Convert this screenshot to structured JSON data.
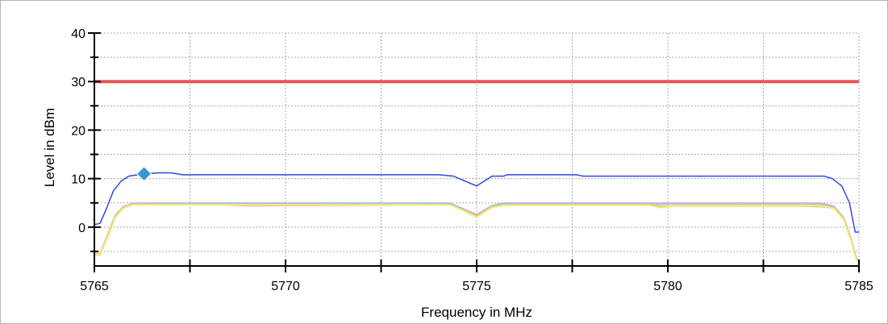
{
  "chart_data": {
    "type": "line",
    "title": "",
    "xlabel": "Frequency in MHz",
    "ylabel": "Level in dBm",
    "xlim": [
      5765,
      5785
    ],
    "ylim": [
      -8,
      40
    ],
    "x_ticks": [
      5765,
      5770,
      5775,
      5780,
      5785
    ],
    "y_ticks": [
      0,
      10,
      20,
      30,
      40
    ],
    "grid": true,
    "legend": "none",
    "limit_line": {
      "value": 30,
      "color": "#e85454"
    },
    "marker": {
      "x": 5766.3,
      "y": 11.0,
      "shape": "diamond",
      "color": "#3b95d8"
    },
    "series": [
      {
        "color": "#3f51e0",
        "points": [
          [
            5765.0,
            0.5
          ],
          [
            5765.15,
            0.8
          ],
          [
            5765.3,
            3.5
          ],
          [
            5765.5,
            7.5
          ],
          [
            5765.7,
            9.5
          ],
          [
            5765.9,
            10.5
          ],
          [
            5766.3,
            11.0
          ],
          [
            5766.7,
            11.2
          ],
          [
            5767.0,
            11.2
          ],
          [
            5767.3,
            10.8
          ],
          [
            5774.0,
            10.8
          ],
          [
            5774.4,
            10.5
          ],
          [
            5774.6,
            9.8
          ],
          [
            5775.0,
            8.5
          ],
          [
            5775.4,
            10.5
          ],
          [
            5775.7,
            10.5
          ],
          [
            5775.8,
            10.8
          ],
          [
            5777.6,
            10.8
          ],
          [
            5777.8,
            10.5
          ],
          [
            5784.1,
            10.5
          ],
          [
            5784.3,
            10.0
          ],
          [
            5784.55,
            8.5
          ],
          [
            5784.75,
            5.0
          ],
          [
            5784.9,
            -1.0
          ],
          [
            5785.0,
            -1.0
          ]
        ]
      },
      {
        "color": "#c88ce6",
        "points": [
          [
            5765.0,
            -5.5
          ],
          [
            5765.15,
            -5.5
          ],
          [
            5765.35,
            -1.5
          ],
          [
            5765.55,
            2.5
          ],
          [
            5765.75,
            4.2
          ],
          [
            5766.0,
            4.9
          ],
          [
            5774.3,
            4.9
          ],
          [
            5774.7,
            3.6
          ],
          [
            5775.0,
            2.6
          ],
          [
            5775.4,
            4.4
          ],
          [
            5775.7,
            4.9
          ],
          [
            5784.0,
            4.9
          ],
          [
            5784.35,
            4.3
          ],
          [
            5784.6,
            2.0
          ],
          [
            5784.8,
            -2.5
          ],
          [
            5784.92,
            -6.0
          ],
          [
            5785.0,
            -7.2
          ]
        ]
      },
      {
        "color": "#84cfe8",
        "points": [
          [
            5765.0,
            -5.6
          ],
          [
            5765.15,
            -5.6
          ],
          [
            5765.35,
            -1.8
          ],
          [
            5765.55,
            2.3
          ],
          [
            5765.75,
            4.0
          ],
          [
            5766.0,
            4.8
          ],
          [
            5774.3,
            4.8
          ],
          [
            5774.7,
            3.4
          ],
          [
            5775.0,
            2.4
          ],
          [
            5775.4,
            4.3
          ],
          [
            5775.7,
            4.8
          ],
          [
            5784.0,
            4.8
          ],
          [
            5784.35,
            4.1
          ],
          [
            5784.6,
            1.8
          ],
          [
            5784.8,
            -2.7
          ],
          [
            5784.92,
            -6.2
          ],
          [
            5785.0,
            -7.3
          ]
        ]
      },
      {
        "color": "#f3b4b4",
        "points": [
          [
            5765.0,
            -5.4
          ],
          [
            5765.15,
            -5.4
          ],
          [
            5765.35,
            -1.6
          ],
          [
            5765.55,
            2.4
          ],
          [
            5765.75,
            4.2
          ],
          [
            5766.0,
            4.8
          ],
          [
            5768.0,
            4.7
          ],
          [
            5769.0,
            4.4
          ],
          [
            5774.3,
            4.6
          ],
          [
            5774.7,
            3.5
          ],
          [
            5775.0,
            2.5
          ],
          [
            5775.4,
            4.2
          ],
          [
            5775.7,
            4.7
          ],
          [
            5784.0,
            4.7
          ],
          [
            5784.35,
            4.2
          ],
          [
            5784.6,
            1.9
          ],
          [
            5784.8,
            -2.6
          ],
          [
            5784.92,
            -6.1
          ],
          [
            5785.0,
            -7.4
          ]
        ]
      },
      {
        "color": "#9fe59a",
        "points": [
          [
            5765.0,
            -5.7
          ],
          [
            5765.15,
            -5.7
          ],
          [
            5765.35,
            -2.0
          ],
          [
            5765.55,
            2.2
          ],
          [
            5765.75,
            4.0
          ],
          [
            5766.0,
            4.7
          ],
          [
            5774.3,
            4.7
          ],
          [
            5774.7,
            3.3
          ],
          [
            5775.0,
            2.2
          ],
          [
            5775.4,
            4.2
          ],
          [
            5775.7,
            4.6
          ],
          [
            5779.5,
            4.6
          ],
          [
            5779.8,
            4.3
          ],
          [
            5783.5,
            4.3
          ],
          [
            5784.0,
            4.2
          ],
          [
            5784.35,
            3.9
          ],
          [
            5784.6,
            1.6
          ],
          [
            5784.8,
            -2.9
          ],
          [
            5784.92,
            -6.4
          ],
          [
            5785.0,
            -7.5
          ]
        ]
      },
      {
        "color": "#f7f06e",
        "points": [
          [
            5765.0,
            -5.6
          ],
          [
            5765.15,
            -5.6
          ],
          [
            5765.35,
            -2.2
          ],
          [
            5765.55,
            2.0
          ],
          [
            5765.75,
            3.8
          ],
          [
            5766.0,
            4.6
          ],
          [
            5774.3,
            4.6
          ],
          [
            5774.7,
            3.2
          ],
          [
            5775.0,
            2.0
          ],
          [
            5775.4,
            4.0
          ],
          [
            5775.7,
            4.5
          ],
          [
            5779.5,
            4.5
          ],
          [
            5779.8,
            4.0
          ],
          [
            5780.2,
            4.4
          ],
          [
            5784.0,
            4.4
          ],
          [
            5784.35,
            3.8
          ],
          [
            5784.6,
            1.5
          ],
          [
            5784.8,
            -3.0
          ],
          [
            5784.92,
            -6.5
          ],
          [
            5785.0,
            -7.6
          ]
        ]
      }
    ]
  }
}
